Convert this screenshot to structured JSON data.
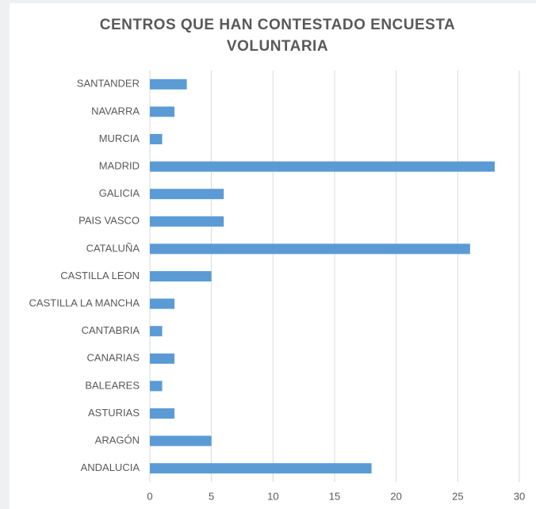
{
  "chart_data": {
    "type": "bar",
    "orientation": "horizontal",
    "title": "CENTROS QUE HAN CONTESTADO ENCUESTA VOLUNTARIA",
    "categories": [
      "SANTANDER",
      "NAVARRA",
      "MURCIA",
      "MADRID",
      "GALICIA",
      "PAIS VASCO",
      "CATALUÑA",
      "CASTILLA LEON",
      "CASTILLA LA MANCHA",
      "CANTABRIA",
      "CANARIAS",
      "BALEARES",
      "ASTURIAS",
      "ARAGÓN",
      "ANDALUCIA"
    ],
    "values": [
      3,
      2,
      1,
      28,
      6,
      6,
      26,
      5,
      2,
      1,
      2,
      1,
      2,
      5,
      18
    ],
    "color": "#5b9bd5",
    "xlim": [
      0,
      30
    ],
    "xticks": [
      0,
      5,
      10,
      15,
      20,
      25,
      30
    ],
    "grid": true
  }
}
